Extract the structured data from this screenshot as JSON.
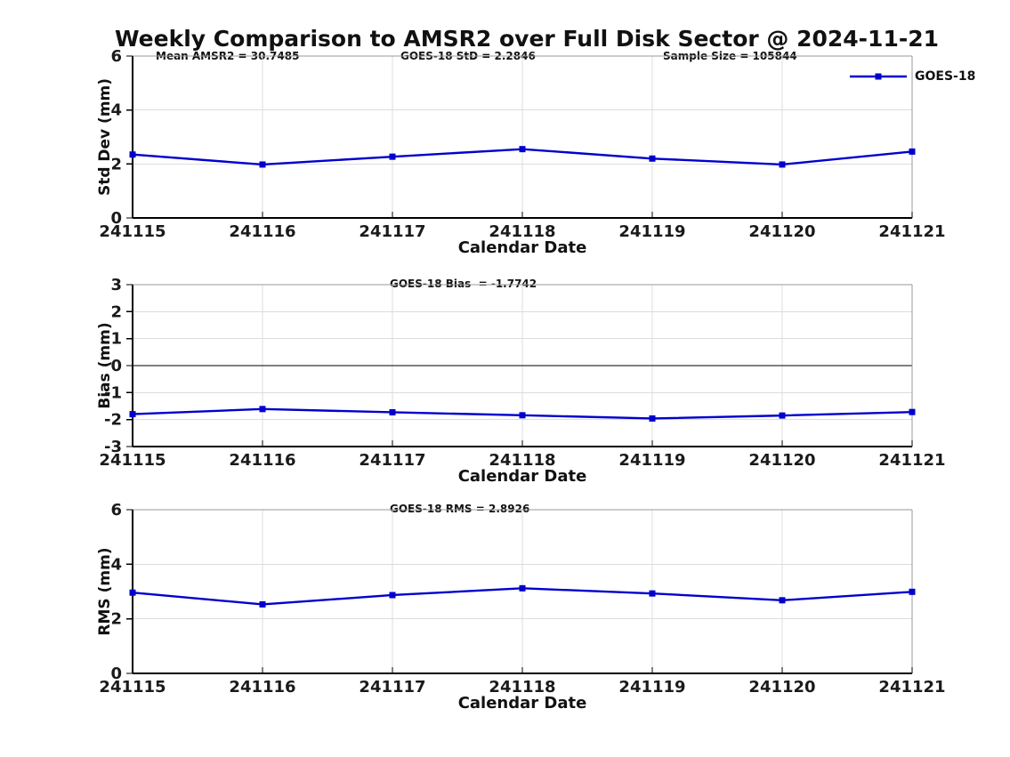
{
  "title": "Weekly Comparison to AMSR2 over Full Disk Sector @ 2024-11-21",
  "legend": {
    "label": "GOES-18",
    "color": "#0000cd",
    "position": "top-right"
  },
  "chart_data": [
    {
      "type": "line",
      "name": "std-dev-vs-date",
      "x": [
        "241115",
        "241116",
        "241117",
        "241118",
        "241119",
        "241120",
        "241121"
      ],
      "series": [
        {
          "name": "GOES-18",
          "color": "#0000cd",
          "marker": "square",
          "values": [
            2.35,
            1.98,
            2.27,
            2.55,
            2.2,
            1.98,
            2.46
          ]
        }
      ],
      "ylabel": "Std Dev (mm)",
      "xlabel": "Calendar Date",
      "ylim": [
        0,
        6
      ],
      "yticks": [
        0,
        2,
        4,
        6
      ],
      "grid": true,
      "annotations": [
        "Mean AMSR2 = 30.7485",
        "GOES-18 StD = 2.2846",
        "Sample Size = 105844"
      ],
      "legend_entries": [
        "GOES-18"
      ]
    },
    {
      "type": "line",
      "name": "bias-vs-date",
      "x": [
        "241115",
        "241116",
        "241117",
        "241118",
        "241119",
        "241120",
        "241121"
      ],
      "series": [
        {
          "name": "GOES-18",
          "color": "#0000cd",
          "marker": "square",
          "values": [
            -1.8,
            -1.61,
            -1.73,
            -1.84,
            -1.96,
            -1.85,
            -1.72
          ]
        }
      ],
      "ylabel": "Bias (mm)",
      "xlabel": "Calendar Date",
      "ylim": [
        -3,
        3
      ],
      "yticks": [
        -3,
        -2,
        -1,
        0,
        1,
        2,
        3
      ],
      "grid": true,
      "zero_line": true,
      "annotations": [
        "GOES-18 Bias  = -1.7742"
      ]
    },
    {
      "type": "line",
      "name": "rms-vs-date",
      "x": [
        "241115",
        "241116",
        "241117",
        "241118",
        "241119",
        "241120",
        "241121"
      ],
      "series": [
        {
          "name": "GOES-18",
          "color": "#0000cd",
          "marker": "square",
          "values": [
            2.96,
            2.53,
            2.87,
            3.12,
            2.93,
            2.68,
            2.99
          ]
        }
      ],
      "ylabel": "RMS (mm)",
      "xlabel": "Calendar Date",
      "ylim": [
        0,
        6
      ],
      "yticks": [
        0,
        2,
        4,
        6
      ],
      "grid": true,
      "annotations": [
        "GOES-18 RMS = 2.8926"
      ]
    }
  ]
}
